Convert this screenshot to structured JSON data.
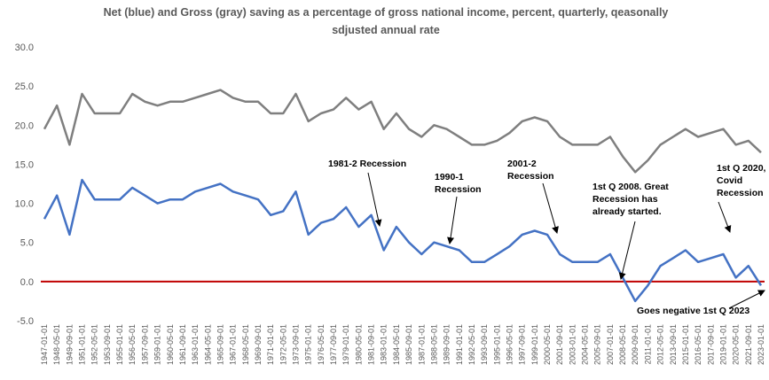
{
  "chart_data": {
    "type": "line",
    "title": [
      "Net (blue) and Gross (gray) saving as a percentage of gross national income, percent, quarterly, qeasonally",
      "sdjusted annual rate"
    ],
    "categories": [
      "1947-01-01",
      "1948-05-01",
      "1949-09-01",
      "1951-01-01",
      "1952-05-01",
      "1953-09-01",
      "1955-01-01",
      "1956-05-01",
      "1957-09-01",
      "1959-01-01",
      "1960-05-01",
      "1961-09-01",
      "1963-01-01",
      "1964-05-01",
      "1965-09-01",
      "1967-01-01",
      "1968-05-01",
      "1969-09-01",
      "1971-01-01",
      "1972-05-01",
      "1973-09-01",
      "1975-01-01",
      "1976-05-01",
      "1977-09-01",
      "1979-01-01",
      "1980-05-01",
      "1981-09-01",
      "1983-01-01",
      "1984-05-01",
      "1985-09-01",
      "1987-01-01",
      "1988-05-01",
      "1989-09-01",
      "1991-01-01",
      "1992-05-01",
      "1993-09-01",
      "1995-01-01",
      "1996-05-01",
      "1997-09-01",
      "1999-01-01",
      "2000-05-01",
      "2001-09-01",
      "2003-01-01",
      "2004-05-01",
      "2005-09-01",
      "2007-01-01",
      "2008-05-01",
      "2009-09-01",
      "2011-01-01",
      "2012-05-01",
      "2013-09-01",
      "2015-01-01",
      "2016-05-01",
      "2017-09-01",
      "2019-01-01",
      "2020-05-01",
      "2021-09-01",
      "2023-01-01"
    ],
    "series": [
      {
        "color": "#7f7f7f",
        "values": [
          19.5,
          22.5,
          17.5,
          24,
          21.5,
          21.5,
          21.5,
          24,
          23,
          22.5,
          23,
          23,
          23.5,
          24,
          24.5,
          23.5,
          23,
          23,
          21.5,
          21.5,
          24,
          20.5,
          21.5,
          22,
          23.5,
          22,
          23,
          19.5,
          21.5,
          19.5,
          18.5,
          20,
          19.5,
          18.5,
          17.5,
          17.5,
          18,
          19,
          20.5,
          21,
          20.5,
          18.5,
          17.5,
          17.5,
          17.5,
          18.5,
          16,
          14,
          15.5,
          17.5,
          18.5,
          19.5,
          18.5,
          19,
          19.5,
          17.5,
          18,
          16.5
        ]
      },
      {
        "color": "#4472c4",
        "values": [
          8,
          11,
          6,
          13,
          10.5,
          10.5,
          10.5,
          12,
          11,
          10,
          10.5,
          10.5,
          11.5,
          12,
          12.5,
          11.5,
          11,
          10.5,
          8.5,
          9,
          11.5,
          6,
          7.5,
          8,
          9.5,
          7,
          8.5,
          4,
          7,
          5,
          3.5,
          5,
          4.5,
          4,
          2.5,
          2.5,
          3.5,
          4.5,
          6,
          6.5,
          6,
          3.5,
          2.5,
          2.5,
          2.5,
          3.5,
          0.5,
          -2.5,
          -0.5,
          2,
          3,
          4,
          2.5,
          3,
          3.5,
          0.5,
          2,
          -0.5
        ]
      }
    ],
    "ylim": [
      -5,
      30
    ],
    "yticks": [
      {
        "value": -5,
        "label": "-5.0"
      },
      {
        "value": 0,
        "label": "0.0"
      },
      {
        "value": 5,
        "label": "5.0"
      },
      {
        "value": 10,
        "label": "10.0"
      },
      {
        "value": 15,
        "label": "15.0"
      },
      {
        "value": 20,
        "label": "20.0"
      },
      {
        "value": 25,
        "label": "25.0"
      },
      {
        "value": 30,
        "label": "30.0"
      }
    ],
    "grid": false,
    "zero_line_color": "#c00000",
    "annotations": [
      {
        "lines": [
          "1981-2 Recession"
        ]
      },
      {
        "lines": [
          "1990-1",
          "Recession"
        ]
      },
      {
        "lines": [
          "2001-2",
          "Recession"
        ]
      },
      {
        "lines": [
          "1st Q 2008. Great",
          "Recession has",
          "already started."
        ]
      },
      {
        "lines": [
          "1st Q 2020,",
          "Covid",
          "Recession"
        ]
      },
      {
        "lines": [
          "Goes negative 1st Q 2023"
        ]
      }
    ]
  }
}
